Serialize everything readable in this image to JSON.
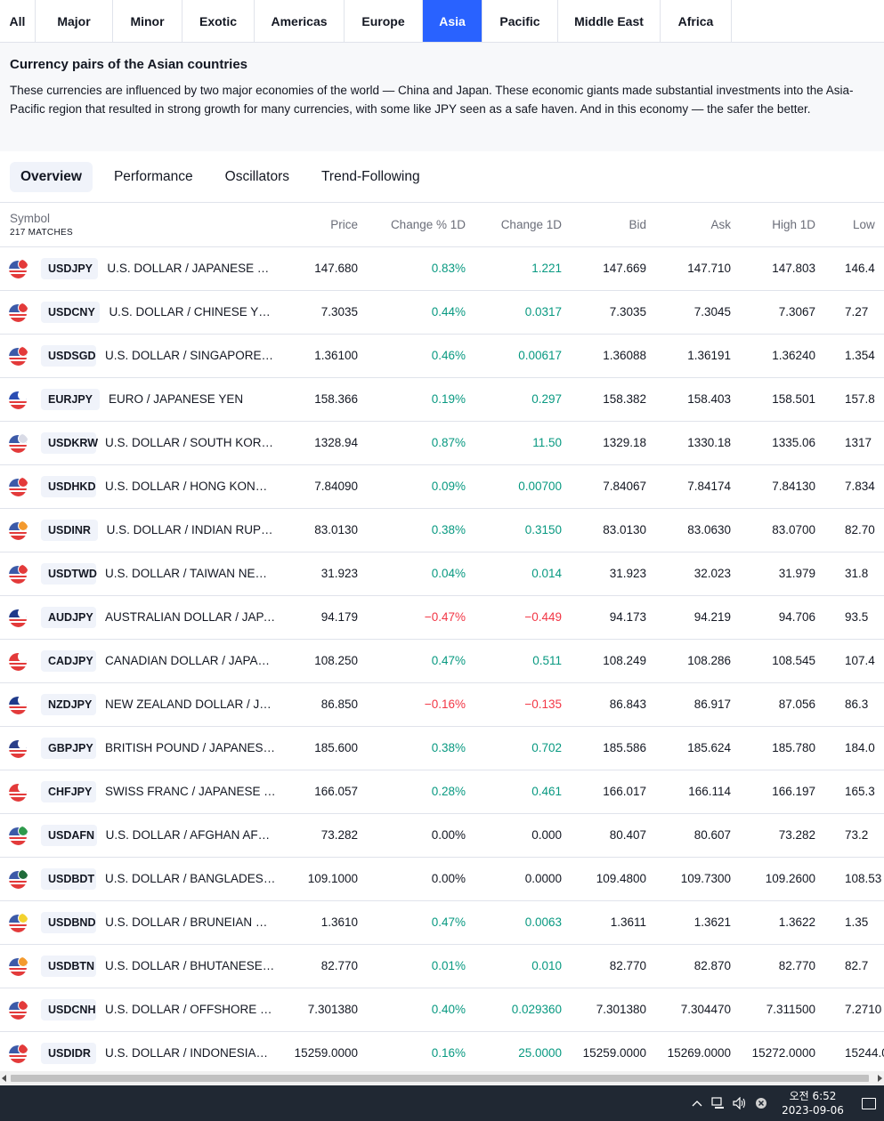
{
  "region_tabs": [
    {
      "label": "All",
      "active": false
    },
    {
      "label": "Major",
      "active": false
    },
    {
      "label": "Minor",
      "active": false
    },
    {
      "label": "Exotic",
      "active": false
    },
    {
      "label": "Americas",
      "active": false
    },
    {
      "label": "Europe",
      "active": false
    },
    {
      "label": "Asia",
      "active": true
    },
    {
      "label": "Pacific",
      "active": false
    },
    {
      "label": "Middle East",
      "active": false
    },
    {
      "label": "Africa",
      "active": false
    }
  ],
  "description": {
    "title": "Currency pairs of the Asian countries",
    "text": "These currencies are influenced by two major economies of the world — China and Japan. These economic giants made substantial investments into the Asia-Pacific region that resulted in strong growth for many currencies, with some like JPY seen as a safe haven. And in this economy — the safer the better."
  },
  "sub_tabs": [
    {
      "label": "Overview",
      "active": true
    },
    {
      "label": "Performance",
      "active": false
    },
    {
      "label": "Oscillators",
      "active": false
    },
    {
      "label": "Trend-Following",
      "active": false
    }
  ],
  "table": {
    "symbol_header": "Symbol",
    "matches": "217 MATCHES",
    "columns": [
      "Price",
      "Change % 1D",
      "Change 1D",
      "Bid",
      "Ask",
      "High 1D",
      "Low"
    ],
    "rows": [
      {
        "ticker": "USDJPY",
        "name": "U.S. DOLLAR / JAPANESE YEN",
        "price": "147.680",
        "chg_pct": "0.83%",
        "chg": "1.221",
        "bid": "147.669",
        "ask": "147.710",
        "high": "147.803",
        "low": "146.4",
        "dir": "pos",
        "c1": "#3c5aa8",
        "c2": "#e33a3a"
      },
      {
        "ticker": "USDCNY",
        "name": "U.S. DOLLAR / CHINESE YUAN",
        "price": "7.3035",
        "chg_pct": "0.44%",
        "chg": "0.0317",
        "bid": "7.3035",
        "ask": "7.3045",
        "high": "7.3067",
        "low": "7.27",
        "dir": "pos",
        "c1": "#3c5aa8",
        "c2": "#e33a3a"
      },
      {
        "ticker": "USDSGD",
        "name": "U.S. DOLLAR / SINGAPORE DOLLAR",
        "price": "1.36100",
        "chg_pct": "0.46%",
        "chg": "0.00617",
        "bid": "1.36088",
        "ask": "1.36191",
        "high": "1.36240",
        "low": "1.354",
        "dir": "pos",
        "c1": "#3c5aa8",
        "c2": "#e33a3a"
      },
      {
        "ticker": "EURJPY",
        "name": "EURO / JAPANESE YEN",
        "price": "158.366",
        "chg_pct": "0.19%",
        "chg": "0.297",
        "bid": "158.382",
        "ask": "158.403",
        "high": "158.501",
        "low": "157.8",
        "dir": "pos",
        "c1": "#2a4db3",
        "c2": "#ffffff"
      },
      {
        "ticker": "USDKRW",
        "name": "U.S. DOLLAR / SOUTH KOREAN WON",
        "price": "1328.94",
        "chg_pct": "0.87%",
        "chg": "11.50",
        "bid": "1329.18",
        "ask": "1330.18",
        "high": "1335.06",
        "low": "1317",
        "dir": "pos",
        "c1": "#3c5aa8",
        "c2": "#d9dbe6"
      },
      {
        "ticker": "USDHKD",
        "name": "U.S. DOLLAR / HONG KONG DOLLAR",
        "price": "7.84090",
        "chg_pct": "0.09%",
        "chg": "0.00700",
        "bid": "7.84067",
        "ask": "7.84174",
        "high": "7.84130",
        "low": "7.834",
        "dir": "pos",
        "c1": "#3c5aa8",
        "c2": "#e33a3a"
      },
      {
        "ticker": "USDINR",
        "name": "U.S. DOLLAR / INDIAN RUPEE",
        "price": "83.0130",
        "chg_pct": "0.38%",
        "chg": "0.3150",
        "bid": "83.0130",
        "ask": "83.0630",
        "high": "83.0700",
        "low": "82.70",
        "dir": "pos",
        "c1": "#3c5aa8",
        "c2": "#f39a2e"
      },
      {
        "ticker": "USDTWD",
        "name": "U.S. DOLLAR / TAIWAN NEW DOLLAR",
        "price": "31.923",
        "chg_pct": "0.04%",
        "chg": "0.014",
        "bid": "31.923",
        "ask": "32.023",
        "high": "31.979",
        "low": "31.8",
        "dir": "pos",
        "c1": "#3c5aa8",
        "c2": "#e33a3a"
      },
      {
        "ticker": "AUDJPY",
        "name": "AUSTRALIAN DOLLAR / JAPANESE YEN",
        "price": "94.179",
        "chg_pct": "−0.47%",
        "chg": "−0.449",
        "bid": "94.173",
        "ask": "94.219",
        "high": "94.706",
        "low": "93.5",
        "dir": "neg",
        "c1": "#1f3a8a",
        "c2": "#ffffff"
      },
      {
        "ticker": "CADJPY",
        "name": "CANADIAN DOLLAR / JAPANESE YEN",
        "price": "108.250",
        "chg_pct": "0.47%",
        "chg": "0.511",
        "bid": "108.249",
        "ask": "108.286",
        "high": "108.545",
        "low": "107.4",
        "dir": "pos",
        "c1": "#e33a3a",
        "c2": "#ffffff"
      },
      {
        "ticker": "NZDJPY",
        "name": "NEW ZEALAND DOLLAR / JAPANESE YEN",
        "price": "86.850",
        "chg_pct": "−0.16%",
        "chg": "−0.135",
        "bid": "86.843",
        "ask": "86.917",
        "high": "87.056",
        "low": "86.3",
        "dir": "neg",
        "c1": "#1f3a8a",
        "c2": "#ffffff"
      },
      {
        "ticker": "GBPJPY",
        "name": "BRITISH POUND / JAPANESE YEN",
        "price": "185.600",
        "chg_pct": "0.38%",
        "chg": "0.702",
        "bid": "185.586",
        "ask": "185.624",
        "high": "185.780",
        "low": "184.0",
        "dir": "pos",
        "c1": "#2a3f8a",
        "c2": "#ffffff"
      },
      {
        "ticker": "CHFJPY",
        "name": "SWISS FRANC / JAPANESE YEN",
        "price": "166.057",
        "chg_pct": "0.28%",
        "chg": "0.461",
        "bid": "166.017",
        "ask": "166.114",
        "high": "166.197",
        "low": "165.3",
        "dir": "pos",
        "c1": "#e33a3a",
        "c2": "#ffffff"
      },
      {
        "ticker": "USDAFN",
        "name": "U.S. DOLLAR / AFGHAN AFGHANI",
        "price": "73.282",
        "chg_pct": "0.00%",
        "chg": "0.000",
        "bid": "80.407",
        "ask": "80.607",
        "high": "73.282",
        "low": "73.2",
        "dir": "neu",
        "c1": "#3c5aa8",
        "c2": "#2e9a4c"
      },
      {
        "ticker": "USDBDT",
        "name": "U.S. DOLLAR / BANGLADESHI TAKA",
        "price": "109.1000",
        "chg_pct": "0.00%",
        "chg": "0.0000",
        "bid": "109.4800",
        "ask": "109.7300",
        "high": "109.2600",
        "low": "108.53",
        "dir": "neu",
        "c1": "#3c5aa8",
        "c2": "#1f6b3a"
      },
      {
        "ticker": "USDBND",
        "name": "U.S. DOLLAR / BRUNEIAN DOLLAR",
        "price": "1.3610",
        "chg_pct": "0.47%",
        "chg": "0.0063",
        "bid": "1.3611",
        "ask": "1.3621",
        "high": "1.3622",
        "low": "1.35",
        "dir": "pos",
        "c1": "#3c5aa8",
        "c2": "#f3d22e"
      },
      {
        "ticker": "USDBTN",
        "name": "U.S. DOLLAR / BHUTANESE NGULTRUM",
        "price": "82.770",
        "chg_pct": "0.01%",
        "chg": "0.010",
        "bid": "82.770",
        "ask": "82.870",
        "high": "82.770",
        "low": "82.7",
        "dir": "pos",
        "c1": "#3c5aa8",
        "c2": "#f39a2e"
      },
      {
        "ticker": "USDCNH",
        "name": "U.S. DOLLAR / OFFSHORE CHINESE YUAN",
        "price": "7.301380",
        "chg_pct": "0.40%",
        "chg": "0.029360",
        "bid": "7.301380",
        "ask": "7.304470",
        "high": "7.311500",
        "low": "7.2710",
        "dir": "pos",
        "c1": "#3c5aa8",
        "c2": "#e33a3a"
      },
      {
        "ticker": "USDIDR",
        "name": "U.S. DOLLAR / INDONESIAN RUPIAH",
        "price": "15259.0000",
        "chg_pct": "0.16%",
        "chg": "25.0000",
        "bid": "15259.0000",
        "ask": "15269.0000",
        "high": "15272.0000",
        "low": "15244.0",
        "dir": "pos",
        "c1": "#3c5aa8",
        "c2": "#e33a3a"
      }
    ]
  },
  "taskbar": {
    "time": "오전 6:52",
    "date": "2023-09-06"
  }
}
